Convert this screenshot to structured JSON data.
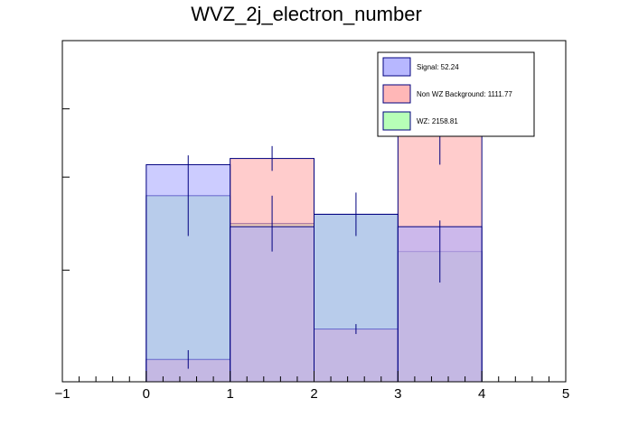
{
  "chart_data": {
    "type": "histogram",
    "title": "WVZ_2j_electron_number",
    "xlabel": "",
    "ylabel": "",
    "xlim": [
      -1,
      5
    ],
    "ylim": [
      0,
      5.5
    ],
    "x_ticks": [
      -1,
      0,
      1,
      2,
      3,
      4,
      5
    ],
    "x_tick_labels": [
      "−1",
      "0",
      "1",
      "2",
      "3",
      "4",
      "5"
    ],
    "bin_edges": [
      0,
      1,
      2,
      3,
      4
    ],
    "legend_placement": "top-right",
    "series": [
      {
        "name": "WZ: 2158.81",
        "color": "#aaffaa",
        "values": [
          3.0,
          2.55,
          2.7,
          2.1
        ],
        "errors": [
          0.65,
          0.45,
          0.35,
          0.5
        ]
      },
      {
        "name": "Non WZ Background: 1111.77",
        "color": "#ffaaaa",
        "values": [
          0.36,
          3.6,
          0.85,
          4.0
        ],
        "errors": [
          0.15,
          0.2,
          0.08,
          0.5
        ]
      },
      {
        "name": "Signal: 52.24",
        "color": "#aaaaff",
        "values": [
          3.5,
          2.5,
          2.7,
          2.5
        ],
        "errors": [
          0.0,
          0.0,
          0.0,
          0.0
        ]
      }
    ]
  }
}
